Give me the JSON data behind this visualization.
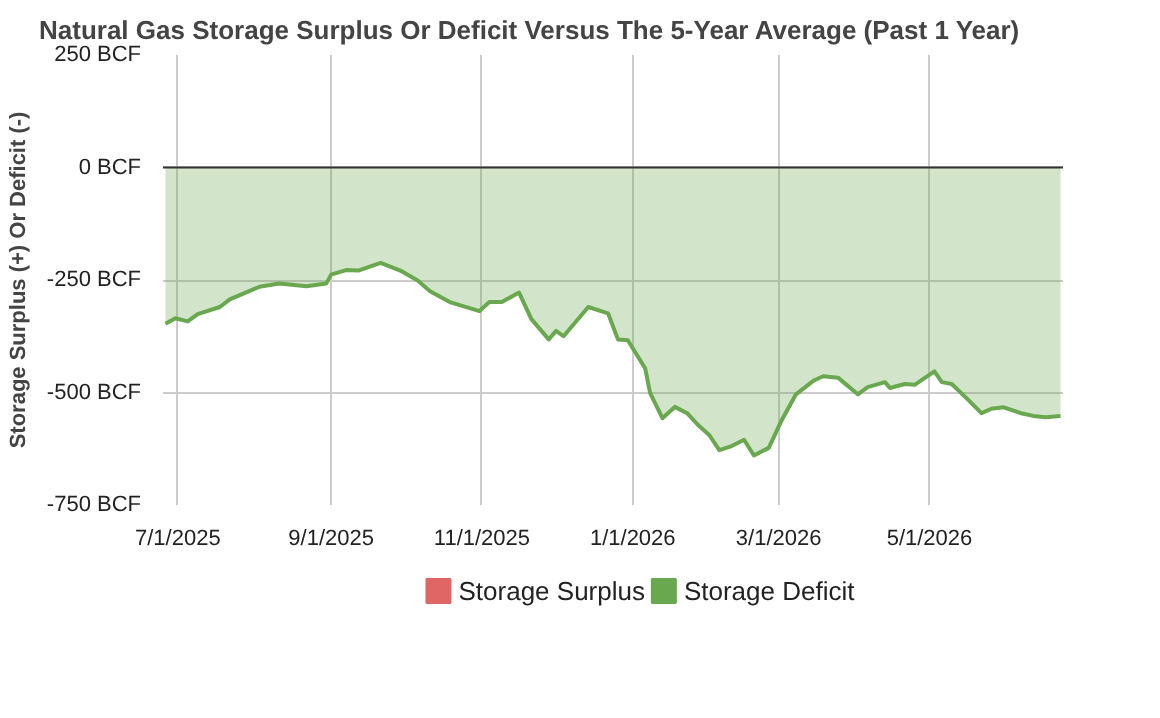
{
  "chart_data": {
    "type": "area",
    "title": "Natural Gas Storage Surplus Or Deficit Versus The 5-Year Average (Past 1 Year)",
    "ylabel": "Storage Surplus (+) Or Deficit (-)",
    "x": [
      "2025-06-26",
      "2025-06-30",
      "2025-07-05",
      "2025-07-09",
      "2025-07-18",
      "2025-07-22",
      "2025-08-03",
      "2025-08-11",
      "2025-08-22",
      "2025-08-30",
      "2025-09-01",
      "2025-09-07",
      "2025-09-12",
      "2025-09-21",
      "2025-09-29",
      "2025-10-06",
      "2025-10-11",
      "2025-10-19",
      "2025-10-31",
      "2025-11-04",
      "2025-11-09",
      "2025-11-16",
      "2025-11-21",
      "2025-11-28",
      "2025-12-01",
      "2025-12-04",
      "2025-12-14",
      "2025-12-22",
      "2025-12-26",
      "2025-12-30",
      "2026-01-06",
      "2026-01-08",
      "2026-01-13",
      "2026-01-18",
      "2026-01-23",
      "2026-01-27",
      "2026-02-01",
      "2026-02-05",
      "2026-02-10",
      "2026-02-15",
      "2026-02-19",
      "2026-02-25",
      "2026-03-02",
      "2026-03-08",
      "2026-03-15",
      "2026-03-19",
      "2026-03-25",
      "2026-04-02",
      "2026-04-06",
      "2026-04-13",
      "2026-04-15",
      "2026-04-21",
      "2026-04-25",
      "2026-05-03",
      "2026-05-06",
      "2026-05-10",
      "2026-05-17",
      "2026-05-22",
      "2026-05-26",
      "2026-05-31",
      "2026-06-07",
      "2026-06-12",
      "2026-06-17",
      "2026-06-23"
    ],
    "series": [
      {
        "name": "Storage Surplus",
        "color": "#e06666",
        "values": [
          null,
          null,
          null,
          null,
          null,
          null,
          null,
          null,
          null,
          null,
          null,
          null,
          null,
          null,
          null,
          null,
          null,
          null,
          null,
          null,
          null,
          null,
          null,
          null,
          null,
          null,
          null,
          null,
          null,
          null,
          null,
          null,
          null,
          null,
          null,
          null,
          null,
          null,
          null,
          null,
          null,
          null,
          null,
          null,
          null,
          null,
          null,
          null,
          null,
          null,
          null,
          null,
          null,
          null,
          null,
          null,
          null,
          null,
          null,
          null,
          null,
          null,
          null,
          null
        ]
      },
      {
        "name": "Storage Deficit",
        "color": "#6aa84f",
        "values": [
          -347,
          -335,
          -342,
          -326,
          -310,
          -293,
          -265,
          -258,
          -264,
          -258,
          -238,
          -228,
          -229,
          -212,
          -229,
          -251,
          -275,
          -299,
          -319,
          -299,
          -299,
          -278,
          -337,
          -382,
          -363,
          -375,
          -310,
          -324,
          -382,
          -384,
          -446,
          -501,
          -557,
          -532,
          -546,
          -570,
          -595,
          -628,
          -619,
          -605,
          -640,
          -623,
          -564,
          -504,
          -474,
          -464,
          -467,
          -504,
          -488,
          -477,
          -490,
          -481,
          -483,
          -453,
          -477,
          -481,
          -518,
          -546,
          -536,
          -533,
          -546,
          -552,
          -555,
          -552
        ]
      }
    ],
    "xlim": [
      "2025-06-25",
      "2026-06-24"
    ],
    "xticks": [
      {
        "value": "2025-07-01",
        "label": "7/1/2025"
      },
      {
        "value": "2025-09-01",
        "label": "9/1/2025"
      },
      {
        "value": "2025-11-01",
        "label": "11/1/2025"
      },
      {
        "value": "2026-01-01",
        "label": "1/1/2026"
      },
      {
        "value": "2026-03-01",
        "label": "3/1/2026"
      },
      {
        "value": "2026-05-01",
        "label": "5/1/2026"
      }
    ],
    "ylim": [
      -750,
      250
    ],
    "yticks": [
      {
        "value": 250,
        "label": "250 BCF"
      },
      {
        "value": 0,
        "label": "0 BCF"
      },
      {
        "value": -250,
        "label": "-250 BCF"
      },
      {
        "value": -500,
        "label": "-500 BCF"
      },
      {
        "value": -750,
        "label": "-750 BCF"
      }
    ],
    "ref_lines": [
      {
        "axis": "y",
        "value": 0,
        "color": "#333333"
      }
    ],
    "grid": true,
    "legend": "bottom"
  }
}
